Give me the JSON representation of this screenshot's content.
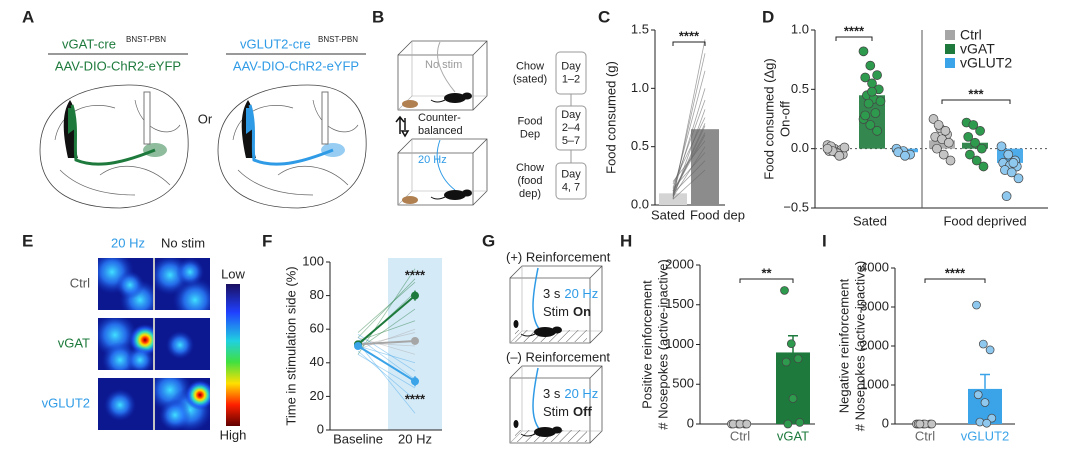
{
  "panel_labels": [
    "A",
    "B",
    "C",
    "D",
    "E",
    "F",
    "G",
    "H",
    "I"
  ],
  "panel_a": {
    "left": {
      "title": "vGAT-cre",
      "superscript": "BNST-PBN",
      "virus": "AAV-DIO-ChR2-eYFP"
    },
    "or": "Or",
    "right": {
      "title": "vGLUT2-cre",
      "superscript": "BNST-PBN",
      "virus": "AAV-DIO-ChR2-eYFP"
    }
  },
  "panel_b": {
    "no_stim": "No stim",
    "counterbalanced": [
      "Counter-",
      "balanced"
    ],
    "stim": "20 Hz",
    "schedule": [
      {
        "condition": [
          "Chow",
          "(sated)"
        ],
        "days": [
          "Day",
          "1–2"
        ]
      },
      {
        "condition": [
          "Food",
          "Dep"
        ],
        "days": [
          "Day",
          "2–4",
          "5–7"
        ]
      },
      {
        "condition": [
          "Chow",
          "(food",
          "dep)"
        ],
        "days": [
          "Day",
          "4, 7"
        ]
      }
    ]
  },
  "panel_e": {
    "columns": [
      "20 Hz",
      "No stim"
    ],
    "rows": [
      "Ctrl",
      "vGAT",
      "vGLUT2"
    ],
    "scale": [
      "Low",
      "High"
    ]
  },
  "panel_g": {
    "blocks": [
      {
        "title": "(+) Reinforcement",
        "duration": "3 s",
        "frequency": "20 Hz",
        "stim": "Stim",
        "state": "On"
      },
      {
        "title": "(–) Reinforcement",
        "duration": "3 s",
        "frequency": "20 Hz",
        "stim": "Stim",
        "state": "Off"
      }
    ]
  },
  "chart_data": [
    {
      "type": "paired_bar",
      "ylabel": "Food consumed (g)",
      "categories": [
        "Sated",
        "Food dep"
      ],
      "values": [
        0.1,
        0.65
      ],
      "colors": [
        "#d4d4d4",
        "#8c8c8c"
      ],
      "ylim": [
        0,
        1.5
      ],
      "yticks": [
        {
          "value": 0,
          "label": "0.0"
        },
        {
          "value": 0.5,
          "label": "0.5"
        },
        {
          "value": 1,
          "label": "1.0"
        },
        {
          "value": 1.5,
          "label": "1.5"
        }
      ],
      "paired": [
        [
          0.05,
          1.42
        ],
        [
          0.08,
          1.3
        ],
        [
          0.12,
          1.15
        ],
        [
          0.1,
          1.0
        ],
        [
          0.15,
          0.9
        ],
        [
          0.06,
          0.82
        ],
        [
          0.18,
          0.75
        ],
        [
          0.09,
          0.7
        ],
        [
          0.12,
          0.62
        ],
        [
          0.2,
          0.55
        ],
        [
          0.07,
          0.5
        ],
        [
          0.14,
          0.45
        ],
        [
          0.1,
          0.38
        ],
        [
          0.05,
          0.3
        ],
        [
          0.11,
          0.6
        ],
        [
          0.08,
          0.68
        ]
      ],
      "significance": "****"
    },
    {
      "type": "grouped_bar_points",
      "ylabel": [
        "Food consumed (Δg)",
        "On-off"
      ],
      "categories": [
        "Sated",
        "Food deprived"
      ],
      "series": [
        {
          "name": "Ctrl",
          "color": "#a6a6a6",
          "values": [
            -0.02,
            0.07
          ],
          "points": [
            [
              0.03,
              0.0,
              -0.01,
              -0.02,
              -0.03,
              -0.05,
              0.02,
              -0.04,
              0.01,
              -0.02,
              -0.06,
              0.0
            ],
            [
              0.25,
              0.17,
              0.12,
              0.1,
              0.08,
              0.05,
              0.0,
              -0.05,
              -0.1,
              0.2,
              0.15
            ]
          ]
        },
        {
          "name": "vGAT",
          "color": "#1e7a3c",
          "values": [
            0.45,
            0.05
          ],
          "points": [
            [
              0.82,
              0.7,
              0.62,
              0.6,
              0.55,
              0.5,
              0.45,
              0.42,
              0.4,
              0.38,
              0.3,
              0.25,
              0.2,
              0.15,
              0.28,
              0.48
            ],
            [
              0.22,
              0.2,
              0.15,
              0.1,
              0.05,
              0.0,
              -0.05,
              -0.1,
              -0.15
            ]
          ]
        },
        {
          "name": "vGLUT2",
          "color": "#3ba3e8",
          "values": [
            -0.03,
            -0.12
          ],
          "points": [
            [
              0.0,
              -0.02,
              -0.05,
              -0.03,
              -0.06
            ],
            [
              0.02,
              -0.05,
              -0.1,
              -0.12,
              -0.14,
              -0.15,
              -0.18,
              -0.2,
              -0.25,
              -0.4,
              -0.12
            ]
          ]
        }
      ],
      "ylim": [
        -0.5,
        1
      ],
      "yticks": [
        {
          "value": -0.5,
          "label": "−0.5"
        },
        {
          "value": 0,
          "label": "0.0"
        },
        {
          "value": 0.5,
          "label": "0.5"
        },
        {
          "value": 1,
          "label": "1.0"
        }
      ],
      "legend": "upper right",
      "significance": [
        "****",
        "***"
      ]
    },
    {
      "type": "line",
      "ylabel": "Time in stimulation side (%)",
      "categories": [
        "Baseline",
        "20 Hz"
      ],
      "series": [
        {
          "color": "#a6a6a6",
          "values": [
            51,
            53
          ],
          "errors": [
            2,
            2
          ],
          "individual": [
            [
              48,
              60
            ],
            [
              55,
              45
            ],
            [
              50,
              58
            ],
            [
              52,
              50
            ]
          ]
        },
        {
          "color": "#1e7a3c",
          "values": [
            51,
            80
          ],
          "errors": [
            2,
            3
          ],
          "individual": [
            [
              45,
              96
            ],
            [
              55,
              90
            ],
            [
              50,
              82
            ],
            [
              48,
              72
            ],
            [
              53,
              65
            ],
            [
              58,
              88
            ]
          ]
        },
        {
          "color": "#3ba3e8",
          "values": [
            50,
            29
          ],
          "errors": [
            2,
            3
          ],
          "individual": [
            [
              52,
              10
            ],
            [
              47,
              18
            ],
            [
              55,
              30
            ],
            [
              50,
              40
            ],
            [
              45,
              25
            ],
            [
              57,
              35
            ]
          ]
        }
      ],
      "ylim": [
        0,
        100
      ],
      "yticks": [
        0,
        20,
        40,
        60,
        80,
        100
      ],
      "significance": [
        "****",
        "****"
      ]
    },
    {
      "type": "bar",
      "ylabel": [
        "Positive reinforcement",
        "# Nosepokes (active-inactive)"
      ],
      "categories": [
        "Ctrl",
        "vGAT"
      ],
      "values": [
        0,
        900
      ],
      "errors": [
        0,
        210
      ],
      "colors": [
        "#a6a6a6",
        "#1e7a3c"
      ],
      "points": [
        [
          0,
          0,
          0,
          0,
          0,
          0
        ],
        [
          1680,
          1010,
          820,
          780,
          320,
          20,
          0
        ]
      ],
      "ylim": [
        0,
        2000
      ],
      "yticks": [
        0,
        500,
        1000,
        1500,
        2000
      ],
      "significance": "**"
    },
    {
      "type": "bar",
      "ylabel": [
        "Negative reinforcement",
        "# Nosepokes (active-inactive)"
      ],
      "categories": [
        "Ctrl",
        "vGLUT2"
      ],
      "values": [
        0,
        900
      ],
      "errors": [
        0,
        370
      ],
      "colors": [
        "#a6a6a6",
        "#3ba3e8"
      ],
      "points": [
        [
          0,
          0,
          0,
          0,
          0,
          0,
          0
        ],
        [
          3050,
          2050,
          1900,
          750,
          550,
          150,
          50,
          20
        ]
      ],
      "ylim": [
        0,
        4000
      ],
      "yticks": [
        0,
        1000,
        2000,
        3000,
        4000
      ],
      "significance": "****"
    }
  ]
}
